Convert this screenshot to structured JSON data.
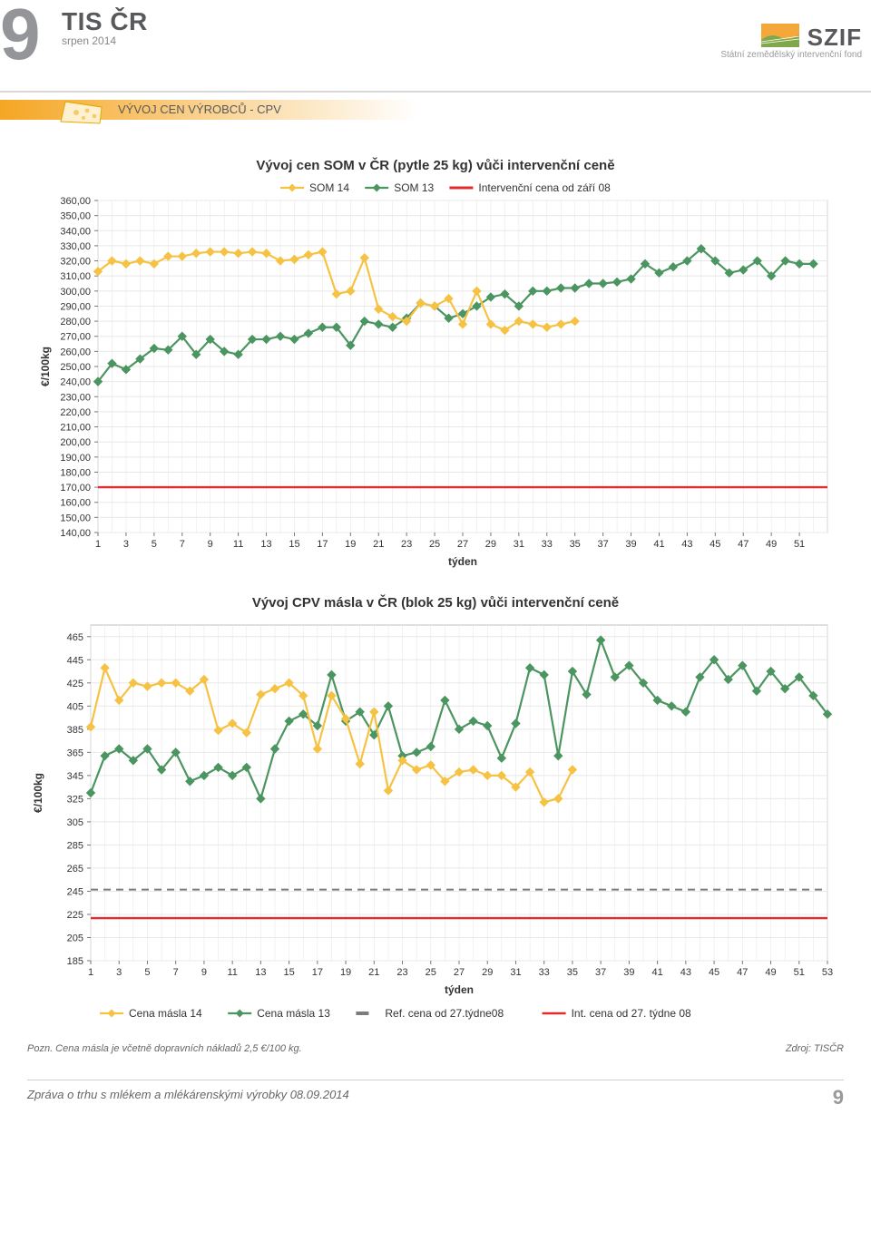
{
  "header": {
    "big_number": "9",
    "tis_title": "TIS ČR",
    "tis_sub": "srpen 2014",
    "szif_title": "SZIF",
    "szif_sub": "Státní zemědělský intervenční fond"
  },
  "section": {
    "label": "VÝVOJ CEN VÝROBCŮ - CPV"
  },
  "chart1": {
    "type": "line",
    "title": "Vývoj cen SOM v ČR (pytle 25 kg) vůči intervenční ceně",
    "x_label": "týden",
    "y_label": "€/100kg",
    "x_ticks": [
      1,
      3,
      5,
      7,
      9,
      11,
      13,
      15,
      17,
      19,
      21,
      23,
      25,
      27,
      29,
      31,
      33,
      35,
      37,
      39,
      41,
      43,
      45,
      47,
      49,
      51
    ],
    "y_ticks": [
      140,
      150,
      160,
      170,
      180,
      190,
      200,
      210,
      220,
      230,
      240,
      250,
      260,
      270,
      280,
      290,
      300,
      310,
      320,
      330,
      340,
      350,
      360
    ],
    "ylim": [
      140,
      360
    ],
    "xlim": [
      1,
      53
    ],
    "tick_fontsize": 11,
    "title_fontsize": 15,
    "label_fontsize": 12,
    "grid_color": "#e8e8e8",
    "bg_color": "#ffffff",
    "border_color": "#bfbfbf",
    "legend": [
      {
        "label": "SOM 14",
        "color": "#f6c244",
        "marker": "diamond"
      },
      {
        "label": "SOM 13",
        "color": "#4b9560",
        "marker": "diamond"
      },
      {
        "label": "Intervenční cena od září 08",
        "color": "#e22b2b",
        "marker": "dash"
      }
    ],
    "intervention_value": 170,
    "series_som14": {
      "color": "#f6c244",
      "line_width": 2.2,
      "marker_size": 4.5,
      "x": [
        1,
        2,
        3,
        4,
        5,
        6,
        7,
        8,
        9,
        10,
        11,
        12,
        13,
        14,
        15,
        16,
        17,
        18,
        19,
        20,
        21,
        22,
        23,
        24,
        25,
        26,
        27,
        28,
        29,
        30,
        31,
        32,
        33,
        34,
        35
      ],
      "y": [
        313,
        320,
        318,
        320,
        318,
        323,
        323,
        325,
        326,
        326,
        325,
        326,
        325,
        320,
        321,
        324,
        326,
        298,
        300,
        322,
        288,
        283,
        280,
        292,
        290,
        295,
        278,
        300,
        278,
        274,
        280,
        278,
        276,
        278,
        280
      ]
    },
    "series_som13": {
      "color": "#4b9560",
      "line_width": 2.2,
      "marker_size": 4.5,
      "x": [
        1,
        2,
        3,
        4,
        5,
        6,
        7,
        8,
        9,
        10,
        11,
        12,
        13,
        14,
        15,
        16,
        17,
        18,
        19,
        20,
        21,
        22,
        23,
        24,
        25,
        26,
        27,
        28,
        29,
        30,
        31,
        32,
        33,
        34,
        35,
        36,
        37,
        38,
        39,
        40,
        41,
        42,
        43,
        44,
        45,
        46,
        47,
        48,
        49,
        50,
        51,
        52
      ],
      "y": [
        240,
        252,
        248,
        255,
        262,
        261,
        270,
        258,
        268,
        260,
        258,
        268,
        268,
        270,
        268,
        272,
        276,
        276,
        264,
        280,
        278,
        276,
        282,
        292,
        290,
        282,
        285,
        290,
        296,
        298,
        290,
        300,
        300,
        302,
        302,
        305,
        305,
        306,
        308,
        318,
        312,
        316,
        320,
        328,
        320,
        312,
        314,
        320,
        310,
        320,
        318,
        318
      ]
    }
  },
  "chart2": {
    "type": "line",
    "title": "Vývoj CPV másla v ČR (blok 25 kg) vůči intervenční ceně",
    "x_label": "týden",
    "y_label": "€/100kg",
    "x_ticks": [
      1,
      3,
      5,
      7,
      9,
      11,
      13,
      15,
      17,
      19,
      21,
      23,
      25,
      27,
      29,
      31,
      33,
      35,
      37,
      39,
      41,
      43,
      45,
      47,
      49,
      51,
      53
    ],
    "y_ticks": [
      185,
      205,
      225,
      245,
      265,
      285,
      305,
      325,
      345,
      365,
      385,
      405,
      425,
      445,
      465
    ],
    "ylim": [
      185,
      475
    ],
    "xlim": [
      1,
      53
    ],
    "tick_fontsize": 11,
    "title_fontsize": 15,
    "label_fontsize": 12,
    "grid_color": "#e8e8e8",
    "bg_color": "#ffffff",
    "border_color": "#bfbfbf",
    "legend": [
      {
        "label": "Cena másla 14",
        "color": "#f6c244",
        "marker": "diamond"
      },
      {
        "label": "Cena másla 13",
        "color": "#4b9560",
        "marker": "diamond"
      },
      {
        "label": "Ref. cena od 27.týdne08",
        "color": "#7c7c7c",
        "marker": "dash"
      },
      {
        "label": "Int. cena od 27. týdne 08",
        "color": "#e22b2b",
        "marker": "line"
      }
    ],
    "ref_value": 246.39,
    "int_value": 221.75,
    "series_14": {
      "color": "#f6c244",
      "line_width": 2.2,
      "marker_size": 4.5,
      "x": [
        1,
        2,
        3,
        4,
        5,
        6,
        7,
        8,
        9,
        10,
        11,
        12,
        13,
        14,
        15,
        16,
        17,
        18,
        19,
        20,
        21,
        22,
        23,
        24,
        25,
        26,
        27,
        28,
        29,
        30,
        31,
        32,
        33,
        34,
        35
      ],
      "y": [
        387,
        438,
        410,
        425,
        422,
        425,
        425,
        418,
        428,
        384,
        390,
        382,
        415,
        420,
        425,
        414,
        368,
        414,
        394,
        355,
        400,
        332,
        358,
        350,
        354,
        340,
        348,
        350,
        345,
        345,
        335,
        348,
        322,
        325,
        350
      ]
    },
    "series_13": {
      "color": "#4b9560",
      "line_width": 2.2,
      "marker_size": 4.5,
      "x": [
        1,
        2,
        3,
        4,
        5,
        6,
        7,
        8,
        9,
        10,
        11,
        12,
        13,
        14,
        15,
        16,
        17,
        18,
        19,
        20,
        21,
        22,
        23,
        24,
        25,
        26,
        27,
        28,
        29,
        30,
        31,
        32,
        33,
        34,
        35,
        36,
        37,
        38,
        39,
        40,
        41,
        42,
        43,
        44,
        45,
        46,
        47,
        48,
        49,
        50,
        51,
        52,
        53
      ],
      "y": [
        330,
        362,
        368,
        358,
        368,
        350,
        365,
        340,
        345,
        352,
        345,
        352,
        325,
        368,
        392,
        398,
        388,
        432,
        392,
        400,
        380,
        405,
        362,
        365,
        370,
        410,
        385,
        392,
        388,
        360,
        390,
        438,
        432,
        362,
        435,
        415,
        462,
        430,
        440,
        425,
        410,
        405,
        400,
        430,
        445,
        428,
        440,
        418,
        435,
        420,
        430,
        414,
        398
      ]
    }
  },
  "note": {
    "left": "Pozn. Cena másla je včetně dopravních nákladů 2,5 €/100 kg.",
    "right": "Zdroj: TISČR"
  },
  "footer": {
    "text": "Zpráva o trhu s mlékem a mlékárenskými výrobky 08.09.2014",
    "page": "9"
  }
}
